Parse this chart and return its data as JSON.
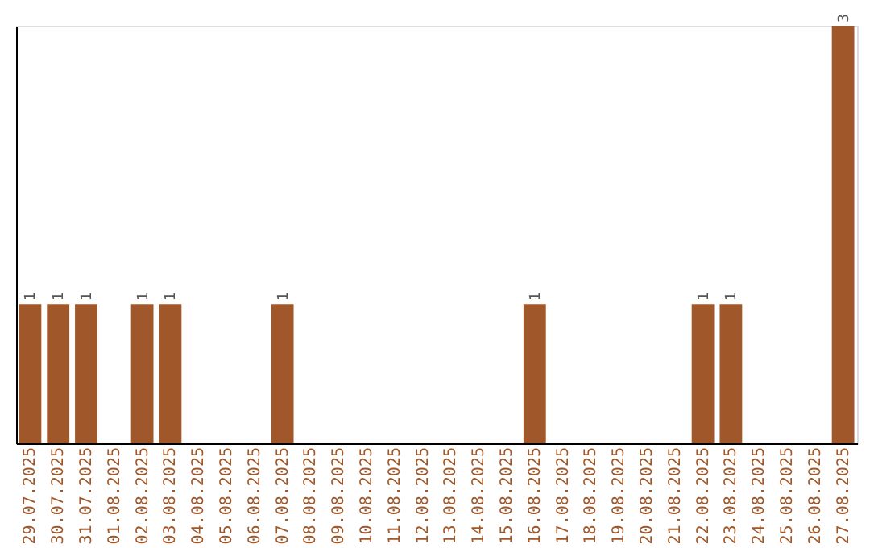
{
  "chart_data": {
    "type": "bar",
    "categories": [
      "29.07.2025",
      "30.07.2025",
      "31.07.2025",
      "01.08.2025",
      "02.08.2025",
      "03.08.2025",
      "04.08.2025",
      "05.08.2025",
      "06.08.2025",
      "07.08.2025",
      "08.08.2025",
      "09.08.2025",
      "10.08.2025",
      "11.08.2025",
      "12.08.2025",
      "13.08.2025",
      "14.08.2025",
      "15.08.2025",
      "16.08.2025",
      "17.08.2025",
      "18.08.2025",
      "19.08.2025",
      "20.08.2025",
      "21.08.2025",
      "22.08.2025",
      "23.08.2025",
      "24.08.2025",
      "25.08.2025",
      "26.08.2025",
      "27.08.2025"
    ],
    "values": [
      1,
      1,
      1,
      0,
      1,
      1,
      0,
      0,
      0,
      1,
      0,
      0,
      0,
      0,
      0,
      0,
      0,
      0,
      1,
      0,
      0,
      0,
      0,
      0,
      1,
      1,
      0,
      0,
      0,
      3
    ],
    "value_labels": [
      "1",
      "1",
      "1",
      null,
      "1",
      "1",
      null,
      null,
      null,
      "1",
      null,
      null,
      null,
      null,
      null,
      null,
      null,
      null,
      "1",
      null,
      null,
      null,
      null,
      null,
      "1",
      "1",
      null,
      null,
      null,
      "3"
    ],
    "color": "#a0582a",
    "tick_labels": "x",
    "grid": false
  }
}
